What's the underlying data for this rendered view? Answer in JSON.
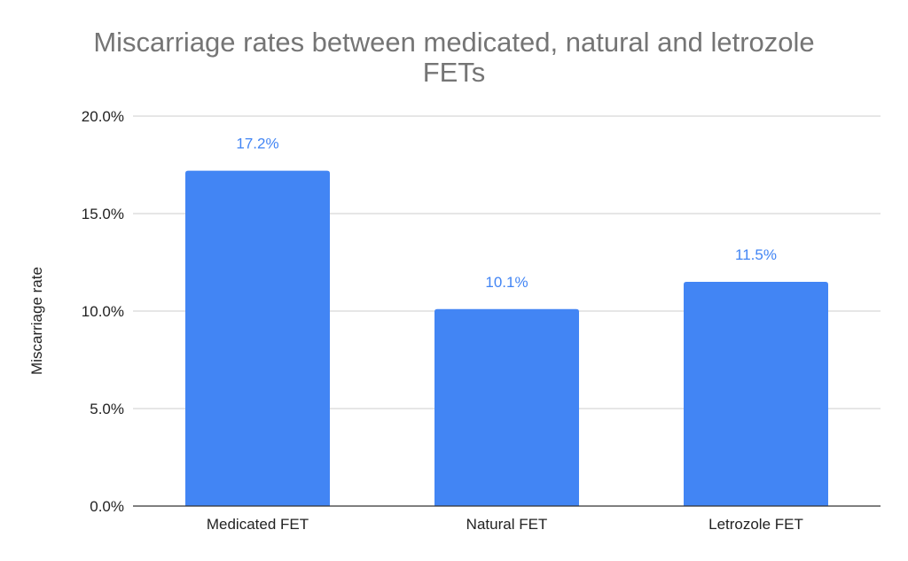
{
  "chart_data": {
    "type": "bar",
    "title_lines": [
      "Miscarriage rates between medicated, natural and letrozole",
      "FETs"
    ],
    "xlabel": "",
    "ylabel": "Miscarriage rate",
    "categories": [
      "Medicated FET",
      "Natural FET",
      "Letrozole FET"
    ],
    "values": [
      17.2,
      10.1,
      11.5
    ],
    "data_labels": [
      "17.2%",
      "10.1%",
      "11.5%"
    ],
    "ylim": [
      0,
      20
    ],
    "yticks": [
      0,
      5,
      10,
      15,
      20
    ],
    "ytick_labels": [
      "0.0%",
      "5.0%",
      "10.0%",
      "15.0%",
      "20.0%"
    ],
    "grid": true,
    "legend": "none",
    "bar_color": "#4285f4",
    "label_color": "#4285f4",
    "title_color": "#757575"
  }
}
